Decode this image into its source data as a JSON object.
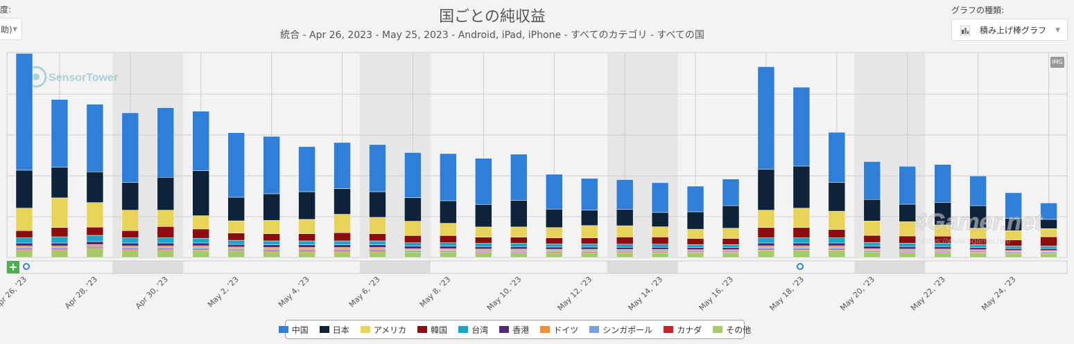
{
  "header": {
    "title": "国ごとの純収益",
    "subtitle": "統合 - Apr 26, 2023 - May 25, 2023 - Android, iPad, iPhone - すべてのカテゴリ - すべての国",
    "granularity_label": "度:",
    "granularity_value": "助)",
    "chart_type_label": "グラフの種類:",
    "chart_type_value": "積み上げ棒グラフ",
    "image_button": "IMG",
    "plus_button": "+"
  },
  "watermarks": {
    "sensortower": "SensorTower",
    "gamer": "4Gamer.net",
    "gamer_url": "https://www.4gamer.net/"
  },
  "colors": {
    "china": "#2f7ed8",
    "japan": "#0d233a",
    "usa": "#e8d35a",
    "korea": "#8b0d0d",
    "taiwan": "#1ba7c4",
    "hongkong": "#4e2b73",
    "germany": "#f0913a",
    "singapore": "#77a1e5",
    "canada": "#c42525",
    "other": "#a6c96a",
    "weekend_band": "#e6e6e6",
    "grid": "#cccccc"
  },
  "chart_data": {
    "type": "bar",
    "stacked": true,
    "y_axis_labels": "hidden",
    "grid": true,
    "legend_position": "bottom",
    "x_tick_labels": [
      "Apr 26, '23",
      "Apr 28, '23",
      "Apr 30, '23",
      "May 2, '23",
      "May 4, '23",
      "May 6, '23",
      "May 8, '23",
      "May 10, '23",
      "May 12, '23",
      "May 14, '23",
      "May 16, '23",
      "May 18, '23",
      "May 20, '23",
      "May 22, '23",
      "May 24, '23"
    ],
    "categories": [
      "Apr 26",
      "Apr 27",
      "Apr 28",
      "Apr 29",
      "Apr 30",
      "May 1",
      "May 2",
      "May 3",
      "May 4",
      "May 5",
      "May 6",
      "May 7",
      "May 8",
      "May 9",
      "May 10",
      "May 11",
      "May 12",
      "May 13",
      "May 14",
      "May 15",
      "May 16",
      "May 17",
      "May 18",
      "May 19",
      "May 20",
      "May 21",
      "May 22",
      "May 23",
      "May 24",
      "May 25"
    ],
    "ylim": [
      0,
      100
    ],
    "series": [
      {
        "name": "その他",
        "values": [
          3.5,
          3.5,
          4.2,
          3.5,
          3.5,
          3.6,
          3.2,
          3.0,
          3.0,
          3.0,
          3.0,
          2.7,
          2.7,
          2.5,
          2.5,
          2.4,
          2.4,
          2.3,
          2.3,
          2.2,
          2.2,
          3.6,
          3.6,
          3.6,
          2.7,
          2.5,
          2.5,
          2.2,
          2.0,
          2.0
        ]
      },
      {
        "name": "カナダ",
        "values": [
          0.5,
          0.5,
          0.5,
          0.5,
          0.5,
          0.5,
          0.5,
          0.5,
          0.5,
          0.5,
          0.5,
          0.4,
          0.4,
          0.4,
          0.4,
          0.4,
          0.4,
          0.4,
          0.4,
          0.4,
          0.4,
          0.5,
          0.5,
          0.5,
          0.4,
          0.4,
          0.4,
          0.4,
          0.4,
          0.4
        ]
      },
      {
        "name": "シンガポール",
        "values": [
          0.8,
          0.8,
          0.8,
          0.8,
          0.8,
          0.8,
          0.7,
          0.7,
          0.7,
          0.7,
          0.7,
          0.6,
          0.6,
          0.6,
          0.6,
          0.6,
          0.6,
          0.6,
          0.6,
          0.6,
          0.6,
          0.8,
          0.8,
          0.8,
          0.6,
          0.6,
          0.6,
          0.6,
          0.5,
          0.5
        ]
      },
      {
        "name": "ドイツ",
        "values": [
          0.8,
          0.8,
          0.8,
          0.8,
          0.8,
          0.8,
          0.7,
          0.7,
          0.7,
          0.7,
          0.7,
          0.6,
          0.6,
          0.6,
          0.6,
          0.6,
          0.6,
          0.6,
          0.6,
          0.6,
          0.6,
          0.8,
          0.8,
          0.8,
          0.6,
          0.6,
          0.6,
          0.6,
          0.5,
          0.5
        ]
      },
      {
        "name": "香港",
        "values": [
          1.5,
          1.5,
          1.5,
          1.5,
          1.5,
          1.4,
          1.3,
          1.3,
          1.3,
          1.3,
          1.3,
          1.2,
          1.2,
          1.2,
          1.2,
          1.1,
          1.1,
          1.1,
          1.1,
          1.1,
          1.1,
          1.4,
          1.4,
          1.4,
          1.2,
          1.2,
          1.2,
          1.1,
          1.0,
          1.0
        ]
      },
      {
        "name": "台湾",
        "values": [
          2.5,
          3.0,
          3.0,
          2.5,
          2.5,
          2.3,
          2.0,
          1.9,
          1.9,
          1.9,
          1.9,
          1.7,
          1.7,
          1.6,
          1.6,
          1.5,
          1.5,
          1.5,
          1.5,
          1.4,
          1.4,
          2.5,
          2.5,
          2.5,
          1.8,
          1.7,
          1.6,
          1.4,
          1.2,
          1.2
        ]
      },
      {
        "name": "韓国",
        "values": [
          3.5,
          4.5,
          4.0,
          3.5,
          5.5,
          4.5,
          3.5,
          3.5,
          3.5,
          4.0,
          3.5,
          3.5,
          3.5,
          3.0,
          3.0,
          3.0,
          3.0,
          3.5,
          3.5,
          3.0,
          3.0,
          5.0,
          5.0,
          4.0,
          3.5,
          3.5,
          3.5,
          3.0,
          3.0,
          4.5
        ]
      },
      {
        "name": "アメリカ",
        "values": [
          11,
          14.5,
          12,
          10,
          8,
          6.5,
          6,
          6.5,
          7,
          9,
          8,
          7,
          6,
          5,
          5,
          5,
          6,
          5.5,
          5,
          4.5,
          5,
          8.5,
          9.5,
          9,
          7,
          7,
          5.5,
          5,
          4.5,
          4
        ]
      },
      {
        "name": "日本",
        "values": [
          18.5,
          15,
          15,
          13.5,
          16,
          22,
          11.5,
          13,
          13.5,
          12.5,
          12.5,
          11.5,
          11,
          11,
          13,
          9,
          7.5,
          8,
          7,
          8.5,
          11,
          20,
          20.5,
          14,
          10.5,
          8.5,
          11,
          11,
          6,
          4.5
        ]
      },
      {
        "name": "中国",
        "values": [
          57,
          33,
          33,
          34,
          34,
          29,
          31.5,
          28,
          22,
          22.5,
          23,
          22,
          23,
          22.5,
          22.5,
          17,
          15.5,
          14.5,
          14.5,
          12.5,
          13,
          50,
          38.5,
          24.5,
          18.5,
          18.5,
          18.5,
          14.5,
          12.5,
          8
        ]
      }
    ]
  }
}
